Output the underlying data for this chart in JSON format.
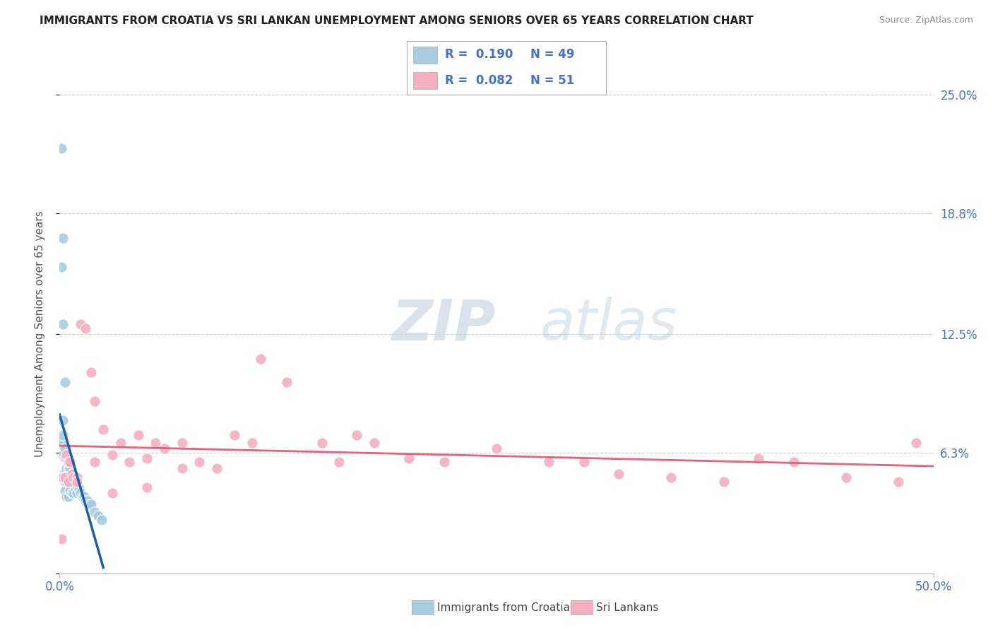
{
  "title": "IMMIGRANTS FROM CROATIA VS SRI LANKAN UNEMPLOYMENT AMONG SENIORS OVER 65 YEARS CORRELATION CHART",
  "source": "Source: ZipAtlas.com",
  "ylabel": "Unemployment Among Seniors over 65 years",
  "xlim": [
    0.0,
    0.5
  ],
  "ylim": [
    0.0,
    0.25
  ],
  "xtick_positions": [
    0.0,
    0.5
  ],
  "xticklabels": [
    "0.0%",
    "50.0%"
  ],
  "ytick_positions": [
    0.0,
    0.063,
    0.125,
    0.188,
    0.25
  ],
  "ytick_labels_right": [
    "",
    "6.3%",
    "12.5%",
    "18.8%",
    "25.0%"
  ],
  "series1_name": "Immigrants from Croatia",
  "series1_color": "#a8cce0",
  "series1_trendline_color_solid": "#1a5fa8",
  "series1_trendline_color_dashed": "#a8cce0",
  "series2_name": "Sri Lankans",
  "series2_color": "#f4afc0",
  "series2_trendline_color": "#e8607a",
  "series1_R": 0.19,
  "series1_N": 49,
  "series2_R": 0.082,
  "series2_N": 51,
  "series1_x": [
    0.001,
    0.001,
    0.001,
    0.002,
    0.002,
    0.002,
    0.002,
    0.003,
    0.003,
    0.003,
    0.003,
    0.003,
    0.004,
    0.004,
    0.004,
    0.004,
    0.005,
    0.005,
    0.005,
    0.005,
    0.006,
    0.006,
    0.006,
    0.006,
    0.007,
    0.007,
    0.007,
    0.008,
    0.008,
    0.008,
    0.009,
    0.009,
    0.01,
    0.01,
    0.011,
    0.012,
    0.013,
    0.014,
    0.015,
    0.016,
    0.017,
    0.018,
    0.02,
    0.022,
    0.024,
    0.001,
    0.002,
    0.003,
    0.002
  ],
  "series1_y": [
    0.222,
    0.068,
    0.05,
    0.175,
    0.08,
    0.062,
    0.05,
    0.065,
    0.06,
    0.053,
    0.048,
    0.043,
    0.06,
    0.055,
    0.048,
    0.04,
    0.06,
    0.055,
    0.048,
    0.04,
    0.058,
    0.055,
    0.05,
    0.043,
    0.052,
    0.048,
    0.042,
    0.05,
    0.047,
    0.042,
    0.048,
    0.044,
    0.046,
    0.042,
    0.044,
    0.042,
    0.04,
    0.04,
    0.038,
    0.038,
    0.036,
    0.036,
    0.032,
    0.03,
    0.028,
    0.16,
    0.13,
    0.1,
    0.072
  ],
  "series2_x": [
    0.001,
    0.002,
    0.003,
    0.004,
    0.005,
    0.005,
    0.006,
    0.007,
    0.008,
    0.01,
    0.012,
    0.015,
    0.018,
    0.02,
    0.025,
    0.03,
    0.035,
    0.04,
    0.045,
    0.05,
    0.055,
    0.06,
    0.07,
    0.08,
    0.09,
    0.1,
    0.11,
    0.115,
    0.13,
    0.15,
    0.16,
    0.17,
    0.18,
    0.2,
    0.22,
    0.25,
    0.28,
    0.3,
    0.32,
    0.35,
    0.38,
    0.4,
    0.42,
    0.45,
    0.48,
    0.01,
    0.02,
    0.03,
    0.05,
    0.07,
    0.49
  ],
  "series2_y": [
    0.018,
    0.05,
    0.05,
    0.062,
    0.058,
    0.048,
    0.058,
    0.052,
    0.05,
    0.05,
    0.13,
    0.128,
    0.105,
    0.09,
    0.075,
    0.062,
    0.068,
    0.058,
    0.072,
    0.06,
    0.068,
    0.065,
    0.068,
    0.058,
    0.055,
    0.072,
    0.068,
    0.112,
    0.1,
    0.068,
    0.058,
    0.072,
    0.068,
    0.06,
    0.058,
    0.065,
    0.058,
    0.058,
    0.052,
    0.05,
    0.048,
    0.06,
    0.058,
    0.05,
    0.048,
    0.048,
    0.058,
    0.042,
    0.045,
    0.055,
    0.068
  ],
  "watermark_zip": "ZIP",
  "watermark_atlas": "atlas",
  "background_color": "#ffffff",
  "grid_color": "#cccccc",
  "legend_R1": "R = ",
  "legend_R1_val": "0.190",
  "legend_N1": "N = ",
  "legend_N1_val": "49",
  "legend_R2": "R = ",
  "legend_R2_val": "0.082",
  "legend_N2": "N = ",
  "legend_N2_val": "51"
}
